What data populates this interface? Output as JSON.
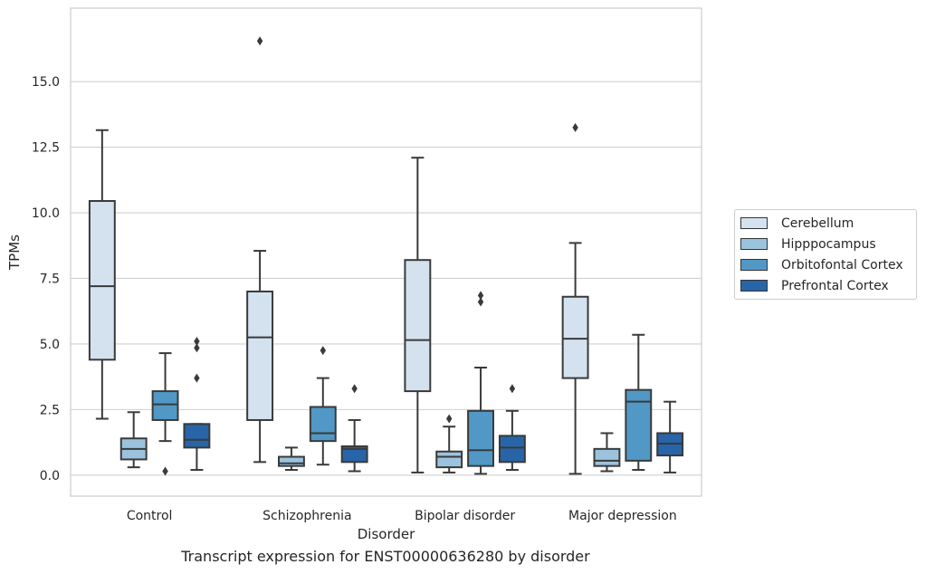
{
  "caption": "Transcript expression for ENST00000636280 by disorder",
  "chart_data": {
    "type": "box",
    "title": "",
    "xlabel": "Disorder",
    "ylabel": "TPMs",
    "ylim": [
      -0.8,
      17.8
    ],
    "yticks": [
      0.0,
      2.5,
      5.0,
      7.5,
      10.0,
      12.5,
      15.0
    ],
    "ytick_labels": [
      "0.0",
      "2.5",
      "5.0",
      "7.5",
      "10.0",
      "12.5",
      "15.0"
    ],
    "grid": "horizontal",
    "legend_position": "right",
    "categories": [
      "Control",
      "Schizophrenia",
      "Bipolar disorder",
      "Major depression"
    ],
    "series": [
      {
        "name": "Cerebellum",
        "color": "#d4e2f0",
        "boxes": [
          {
            "whislo": 2.15,
            "q1": 4.4,
            "med": 7.2,
            "q3": 10.45,
            "whishi": 13.15,
            "fliers": []
          },
          {
            "whislo": 0.5,
            "q1": 2.1,
            "med": 5.25,
            "q3": 7.0,
            "whishi": 8.55,
            "fliers": [
              16.55
            ]
          },
          {
            "whislo": 0.1,
            "q1": 3.2,
            "med": 5.15,
            "q3": 8.2,
            "whishi": 12.1,
            "fliers": []
          },
          {
            "whislo": 0.05,
            "q1": 3.7,
            "med": 5.2,
            "q3": 6.8,
            "whishi": 8.85,
            "fliers": [
              13.25
            ]
          }
        ]
      },
      {
        "name": "Hipppocampus",
        "color": "#9cc3de",
        "boxes": [
          {
            "whislo": 0.3,
            "q1": 0.6,
            "med": 1.0,
            "q3": 1.4,
            "whishi": 2.4,
            "fliers": []
          },
          {
            "whislo": 0.2,
            "q1": 0.35,
            "med": 0.45,
            "q3": 0.7,
            "whishi": 1.05,
            "fliers": []
          },
          {
            "whislo": 0.1,
            "q1": 0.3,
            "med": 0.7,
            "q3": 0.9,
            "whishi": 1.85,
            "fliers": [
              2.15
            ]
          },
          {
            "whislo": 0.15,
            "q1": 0.35,
            "med": 0.55,
            "q3": 1.0,
            "whishi": 1.6,
            "fliers": []
          }
        ]
      },
      {
        "name": "Orbitofontal Cortex",
        "color": "#5198c6",
        "boxes": [
          {
            "whislo": 1.3,
            "q1": 2.1,
            "med": 2.7,
            "q3": 3.2,
            "whishi": 4.65,
            "fliers": [
              0.15
            ]
          },
          {
            "whislo": 0.4,
            "q1": 1.3,
            "med": 1.6,
            "q3": 2.6,
            "whishi": 3.7,
            "fliers": [
              4.75
            ]
          },
          {
            "whislo": 0.05,
            "q1": 0.35,
            "med": 0.95,
            "q3": 2.45,
            "whishi": 4.1,
            "fliers": [
              6.6,
              6.85
            ]
          },
          {
            "whislo": 0.2,
            "q1": 0.55,
            "med": 2.8,
            "q3": 3.25,
            "whishi": 5.35,
            "fliers": []
          }
        ]
      },
      {
        "name": "Prefrontal Cortex",
        "color": "#2765a8",
        "boxes": [
          {
            "whislo": 0.2,
            "q1": 1.05,
            "med": 1.35,
            "q3": 1.95,
            "whishi": 1.95,
            "fliers": [
              3.7,
              4.85,
              5.1
            ]
          },
          {
            "whislo": 0.15,
            "q1": 0.5,
            "med": 1.0,
            "q3": 1.1,
            "whishi": 2.1,
            "fliers": [
              3.3
            ]
          },
          {
            "whislo": 0.2,
            "q1": 0.5,
            "med": 1.05,
            "q3": 1.5,
            "whishi": 2.45,
            "fliers": [
              3.3
            ]
          },
          {
            "whislo": 0.1,
            "q1": 0.75,
            "med": 1.2,
            "q3": 1.6,
            "whishi": 2.8,
            "fliers": []
          }
        ]
      }
    ]
  }
}
